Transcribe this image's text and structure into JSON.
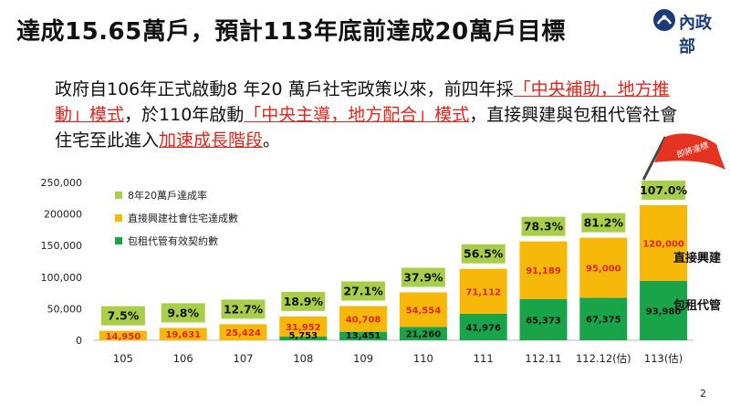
{
  "slide": {
    "title": "達成15.65萬戶，預計113年底前達成20萬戶目標",
    "logo_text": "內政部",
    "page_number": "2",
    "paragraph": [
      {
        "text": "政府自106年正式啟動8 年20 萬戶社宅政策以來，前四年採",
        "hl": false
      },
      {
        "text": "「中央補助，地方推動」模式",
        "hl": true
      },
      {
        "text": "，於110年啟動",
        "hl": false
      },
      {
        "text": "「中央主導，地方配合」模式",
        "hl": true
      },
      {
        "text": "，直接興建與包租代管社會住宅至此進入",
        "hl": false
      },
      {
        "text": "加速成長階段",
        "hl": true
      },
      {
        "text": "。",
        "hl": false
      }
    ]
  },
  "chart_data": {
    "type": "bar",
    "stacked": true,
    "categories": [
      "105",
      "106",
      "107",
      "108",
      "109",
      "110",
      "111",
      "112.11",
      "112.12(估)",
      "113(估)"
    ],
    "series": [
      {
        "name": "包租代管有效契約數",
        "values": [
          0,
          0,
          0,
          5753,
          13451,
          21260,
          41976,
          65373,
          67375,
          93980
        ],
        "color": "#1aa44a",
        "labels": [
          "",
          "",
          "",
          "5,753",
          "13,451",
          "21,260",
          "41,976",
          "65,373",
          "67,375",
          "93,980"
        ]
      },
      {
        "name": "直接興建社會住宅達成數",
        "values": [
          14950,
          19631,
          25424,
          31952,
          40708,
          54554,
          71112,
          91189,
          95000,
          120000
        ],
        "color": "#f6b90a",
        "labels": [
          "14,950",
          "19,631",
          "25,424",
          "31,952",
          "40,708",
          "54,554",
          "71,112",
          "91,189",
          "95,000",
          "120,000"
        ]
      }
    ],
    "rates": [
      "7.5%",
      "9.8%",
      "12.7%",
      "18.9%",
      "27.1%",
      "37.9%",
      "56.5%",
      "78.3%",
      "81.2%",
      "107.0%"
    ],
    "rate_legend": "8年20萬戶達成率",
    "rate_color": "#a9cf4a",
    "yticks": [
      "250,000",
      "200000",
      "150,000",
      "100,000",
      "50,000",
      "0"
    ],
    "ytick_values": [
      250000,
      200000,
      150000,
      100000,
      50000,
      0
    ],
    "ylim": [
      0,
      250000
    ],
    "right_labels": {
      "top": "直接興建",
      "bottom": "包租代管"
    },
    "flag_text": "即將達標",
    "flag_color": "#e53322",
    "grid": false
  }
}
